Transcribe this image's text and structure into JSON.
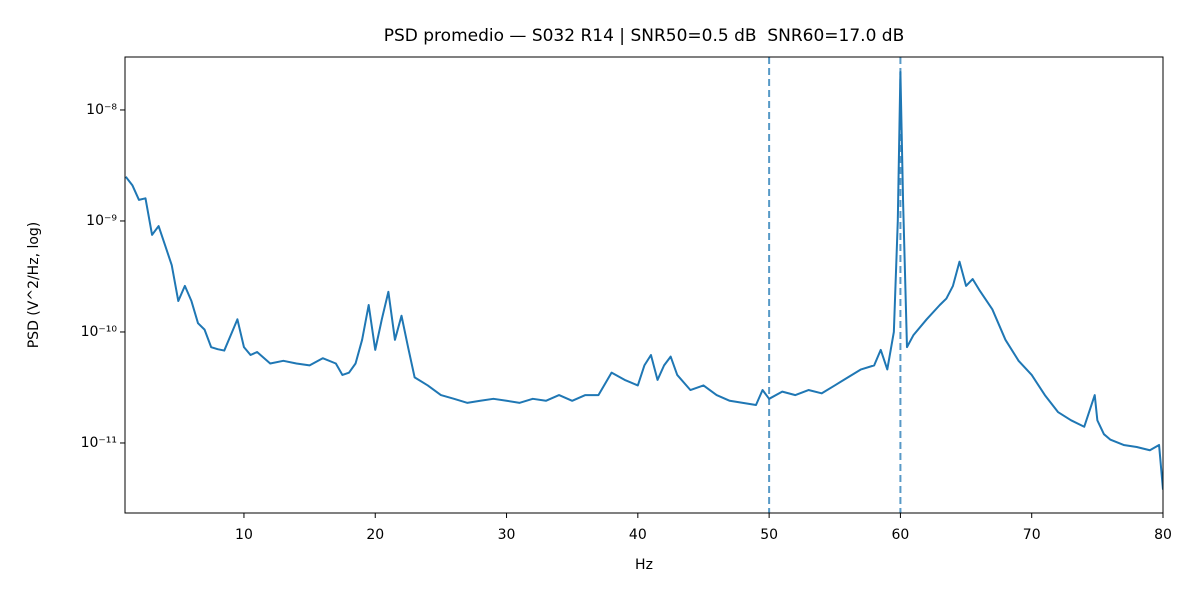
{
  "chart_data": {
    "type": "line",
    "title": "PSD promedio — S032 R14 | SNR50=0.5 dB  SNR60=17.0 dB",
    "x_label": "Hz",
    "y_label": "PSD (V^2/Hz, log)",
    "log_y": true,
    "xlim": [
      0.94,
      80
    ],
    "ylim": [
      2.34e-12,
      3e-08
    ],
    "xticks": [
      10,
      20,
      30,
      40,
      50,
      60,
      70,
      80
    ],
    "yticks": [
      {
        "value": 1e-11,
        "label": "10⁻¹¹"
      },
      {
        "value": 1e-10,
        "label": "10⁻¹⁰"
      },
      {
        "value": 1e-09,
        "label": "10⁻⁹"
      },
      {
        "value": 1e-08,
        "label": "10⁻⁸"
      }
    ],
    "vlines": [
      50,
      60
    ],
    "vline_color": "#1f77b4",
    "x": [
      1,
      1.5,
      2,
      2.5,
      3,
      3.5,
      4,
      4.5,
      5,
      5.5,
      6,
      6.5,
      7,
      7.5,
      8,
      8.5,
      9,
      9.5,
      10,
      10.5,
      11,
      12,
      13,
      14,
      15,
      16,
      17,
      17.5,
      18,
      18.5,
      19,
      19.5,
      20,
      20.5,
      21,
      21.5,
      22,
      22.5,
      23,
      24,
      25,
      26,
      27,
      28,
      29,
      30,
      31,
      32,
      33,
      34,
      35,
      36,
      37,
      38,
      39,
      40,
      40.5,
      41,
      41.5,
      42,
      42.5,
      43,
      44,
      45,
      46,
      47,
      48,
      49,
      49.5,
      50,
      51,
      52,
      53,
      54,
      55,
      56,
      57,
      58,
      58.5,
      59,
      59.5,
      59.8,
      60,
      60.2,
      60.5,
      61,
      62,
      63,
      63.5,
      64,
      64.5,
      65,
      65.5,
      66,
      67,
      68,
      69,
      70,
      71,
      72,
      73,
      74,
      74.8,
      75,
      75.5,
      76,
      77,
      78,
      79,
      79.7,
      80
    ],
    "series": [
      {
        "color": "#1f77b4",
        "values": [
          2.5e-09,
          2.1e-09,
          1.55e-09,
          1.6e-09,
          7.5e-10,
          9e-10,
          6e-10,
          4e-10,
          1.9e-10,
          2.6e-10,
          1.9e-10,
          1.2e-10,
          1.05e-10,
          7.3e-11,
          7e-11,
          6.8e-11,
          9.4e-11,
          1.3e-10,
          7.3e-11,
          6.2e-11,
          6.6e-11,
          5.2e-11,
          5.5e-11,
          5.2e-11,
          5e-11,
          5.8e-11,
          5.2e-11,
          4.1e-11,
          4.3e-11,
          5.2e-11,
          8.5e-11,
          1.75e-10,
          6.9e-11,
          1.3e-10,
          2.3e-10,
          8.5e-11,
          1.4e-10,
          7.3e-11,
          3.9e-11,
          3.3e-11,
          2.7e-11,
          2.5e-11,
          2.3e-11,
          2.4e-11,
          2.5e-11,
          2.4e-11,
          2.3e-11,
          2.5e-11,
          2.4e-11,
          2.7e-11,
          2.4e-11,
          2.7e-11,
          2.7e-11,
          4.3e-11,
          3.7e-11,
          3.3e-11,
          5e-11,
          6.2e-11,
          3.7e-11,
          5e-11,
          6e-11,
          4.1e-11,
          3e-11,
          3.3e-11,
          2.7e-11,
          2.4e-11,
          2.3e-11,
          2.2e-11,
          3e-11,
          2.5e-11,
          2.9e-11,
          2.7e-11,
          3e-11,
          2.8e-11,
          3.3e-11,
          3.9e-11,
          4.6e-11,
          5e-11,
          6.9e-11,
          4.6e-11,
          1e-10,
          1e-09,
          2.2e-08,
          1.55e-09,
          7.3e-11,
          9.4e-11,
          1.3e-10,
          1.75e-10,
          2e-10,
          2.6e-10,
          4.3e-10,
          2.6e-10,
          3e-10,
          2.4e-10,
          1.6e-10,
          8.5e-11,
          5.5e-11,
          4.1e-11,
          2.7e-11,
          1.9e-11,
          1.6e-11,
          1.4e-11,
          2.7e-11,
          1.6e-11,
          1.2e-11,
          1.07e-11,
          9.6e-12,
          9.2e-12,
          8.6e-12,
          9.6e-12,
          3.8e-12
        ]
      }
    ]
  }
}
